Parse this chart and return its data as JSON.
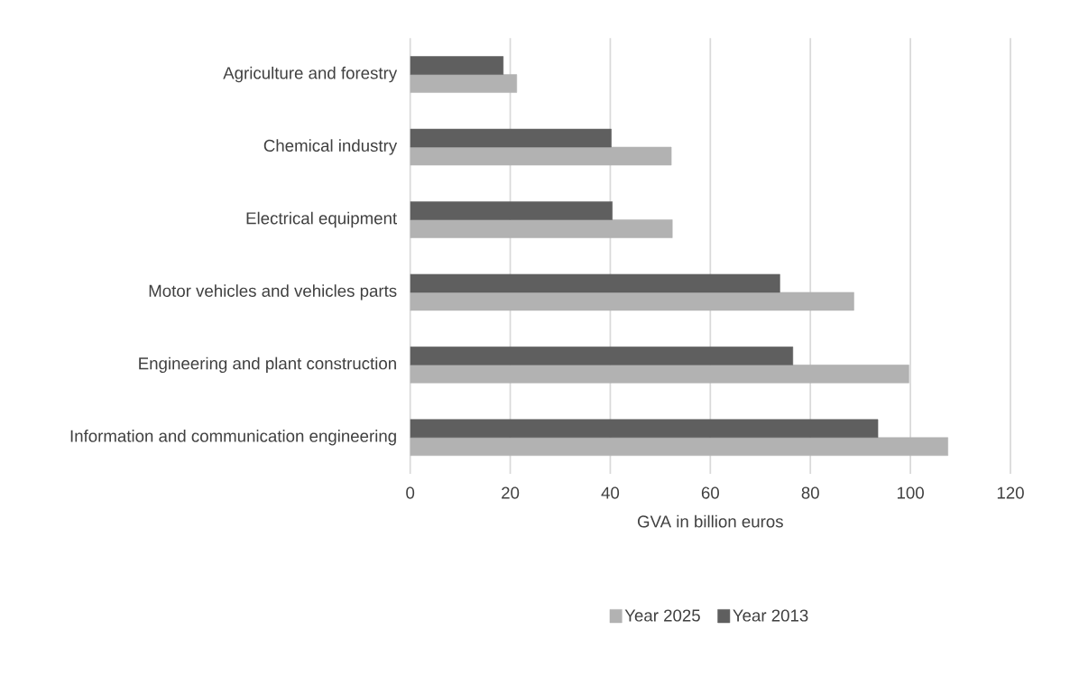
{
  "chart_data": {
    "type": "bar",
    "orientation": "horizontal",
    "xlabel": "GVA in billion euros",
    "categories": [
      "Agriculture and forestry",
      "Chemical industry",
      "Electrical equipment",
      "Motor vehicles and vehicles parts",
      "Engineering and plant construction",
      "Information and communication engineering"
    ],
    "series": [
      {
        "name": "Year 2025",
        "color": "#b2b2b2",
        "values": [
          21.3,
          52.2,
          52.4,
          88.7,
          99.7,
          107.5
        ]
      },
      {
        "name": "Year 2013",
        "color": "#5f5f5f",
        "values": [
          18.6,
          40.2,
          40.4,
          73.9,
          76.5,
          93.5
        ]
      }
    ],
    "xlim": [
      0,
      120
    ],
    "xticks": [
      0,
      20,
      40,
      60,
      80,
      100,
      120
    ],
    "grid": "x",
    "legend": "bottom"
  }
}
